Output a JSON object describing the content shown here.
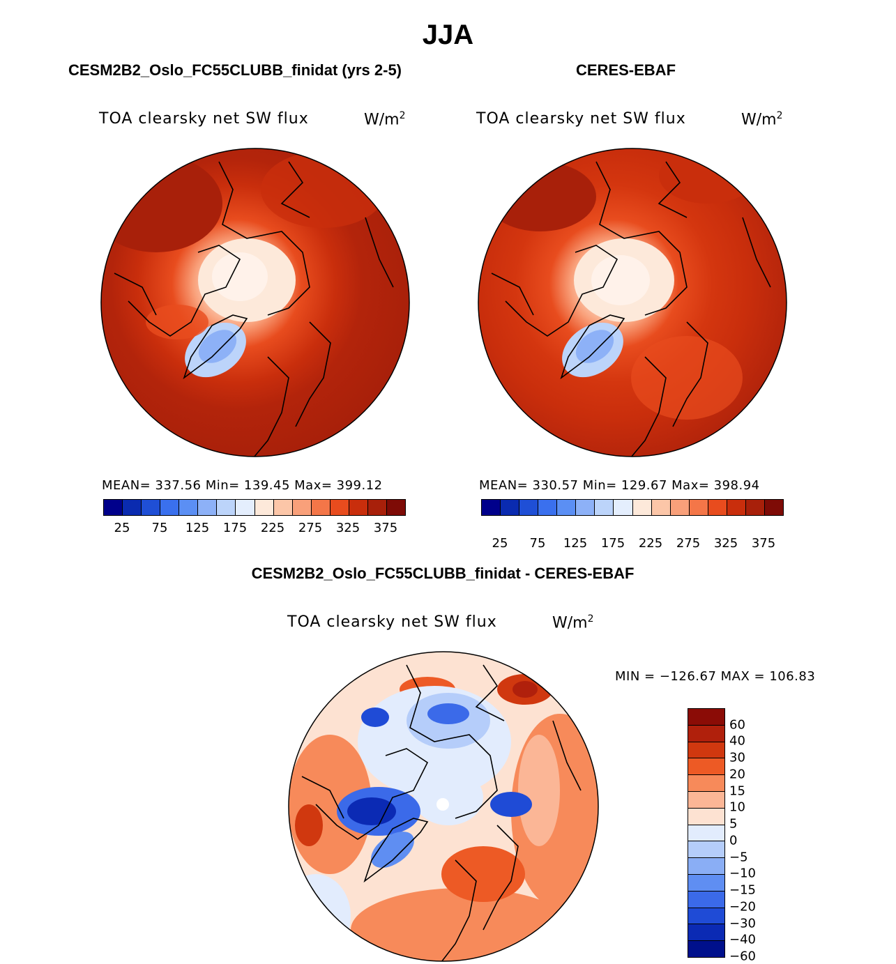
{
  "title": "JJA",
  "panels": [
    {
      "title": "CESM2B2_Oslo_FC55CLUBB_finidat (yrs 2-5)",
      "variable": "TOA clearsky net SW flux",
      "unit_base": "W/m",
      "unit_exp": "2",
      "stats": "MEAN= 337.56   Min= 139.45   Max= 399.12"
    },
    {
      "title": "CERES-EBAF",
      "variable": "TOA clearsky net SW flux",
      "unit_base": "W/m",
      "unit_exp": "2",
      "stats": "MEAN= 330.57   Min= 129.67   Max= 398.94"
    }
  ],
  "colorbar_abs": {
    "colors": [
      "#00008b",
      "#0a2bb0",
      "#1f4fd6",
      "#3a70ee",
      "#5b8ff4",
      "#8db1f7",
      "#bcd4fa",
      "#e4eefd",
      "#fde9da",
      "#fcc6a8",
      "#f9a07a",
      "#f47648",
      "#e84c1e",
      "#c92e0c",
      "#a8200a",
      "#7e0b06"
    ],
    "ticks": [
      "25",
      "75",
      "125",
      "175",
      "225",
      "275",
      "325",
      "375"
    ]
  },
  "diff": {
    "title": "CESM2B2_Oslo_FC55CLUBB_finidat - CERES-EBAF",
    "variable": "TOA clearsky net SW flux",
    "unit_base": "W/m",
    "unit_exp": "2",
    "stats": "MIN = −126.67  MAX = 106.83",
    "colors": [
      "#8b0c06",
      "#b0200c",
      "#d0380f",
      "#ed5a25",
      "#f78a5a",
      "#fbb696",
      "#fde2d2",
      "#e2ecfd",
      "#b5cdfa",
      "#8aaef5",
      "#5f8ef2",
      "#3b6ae9",
      "#1f4bd6",
      "#0b2ab4",
      "#00108c"
    ],
    "ticks": [
      "60",
      "40",
      "30",
      "20",
      "15",
      "10",
      "5",
      "0",
      "−5",
      "−10",
      "−15",
      "−20",
      "−30",
      "−40",
      "−60"
    ]
  }
}
